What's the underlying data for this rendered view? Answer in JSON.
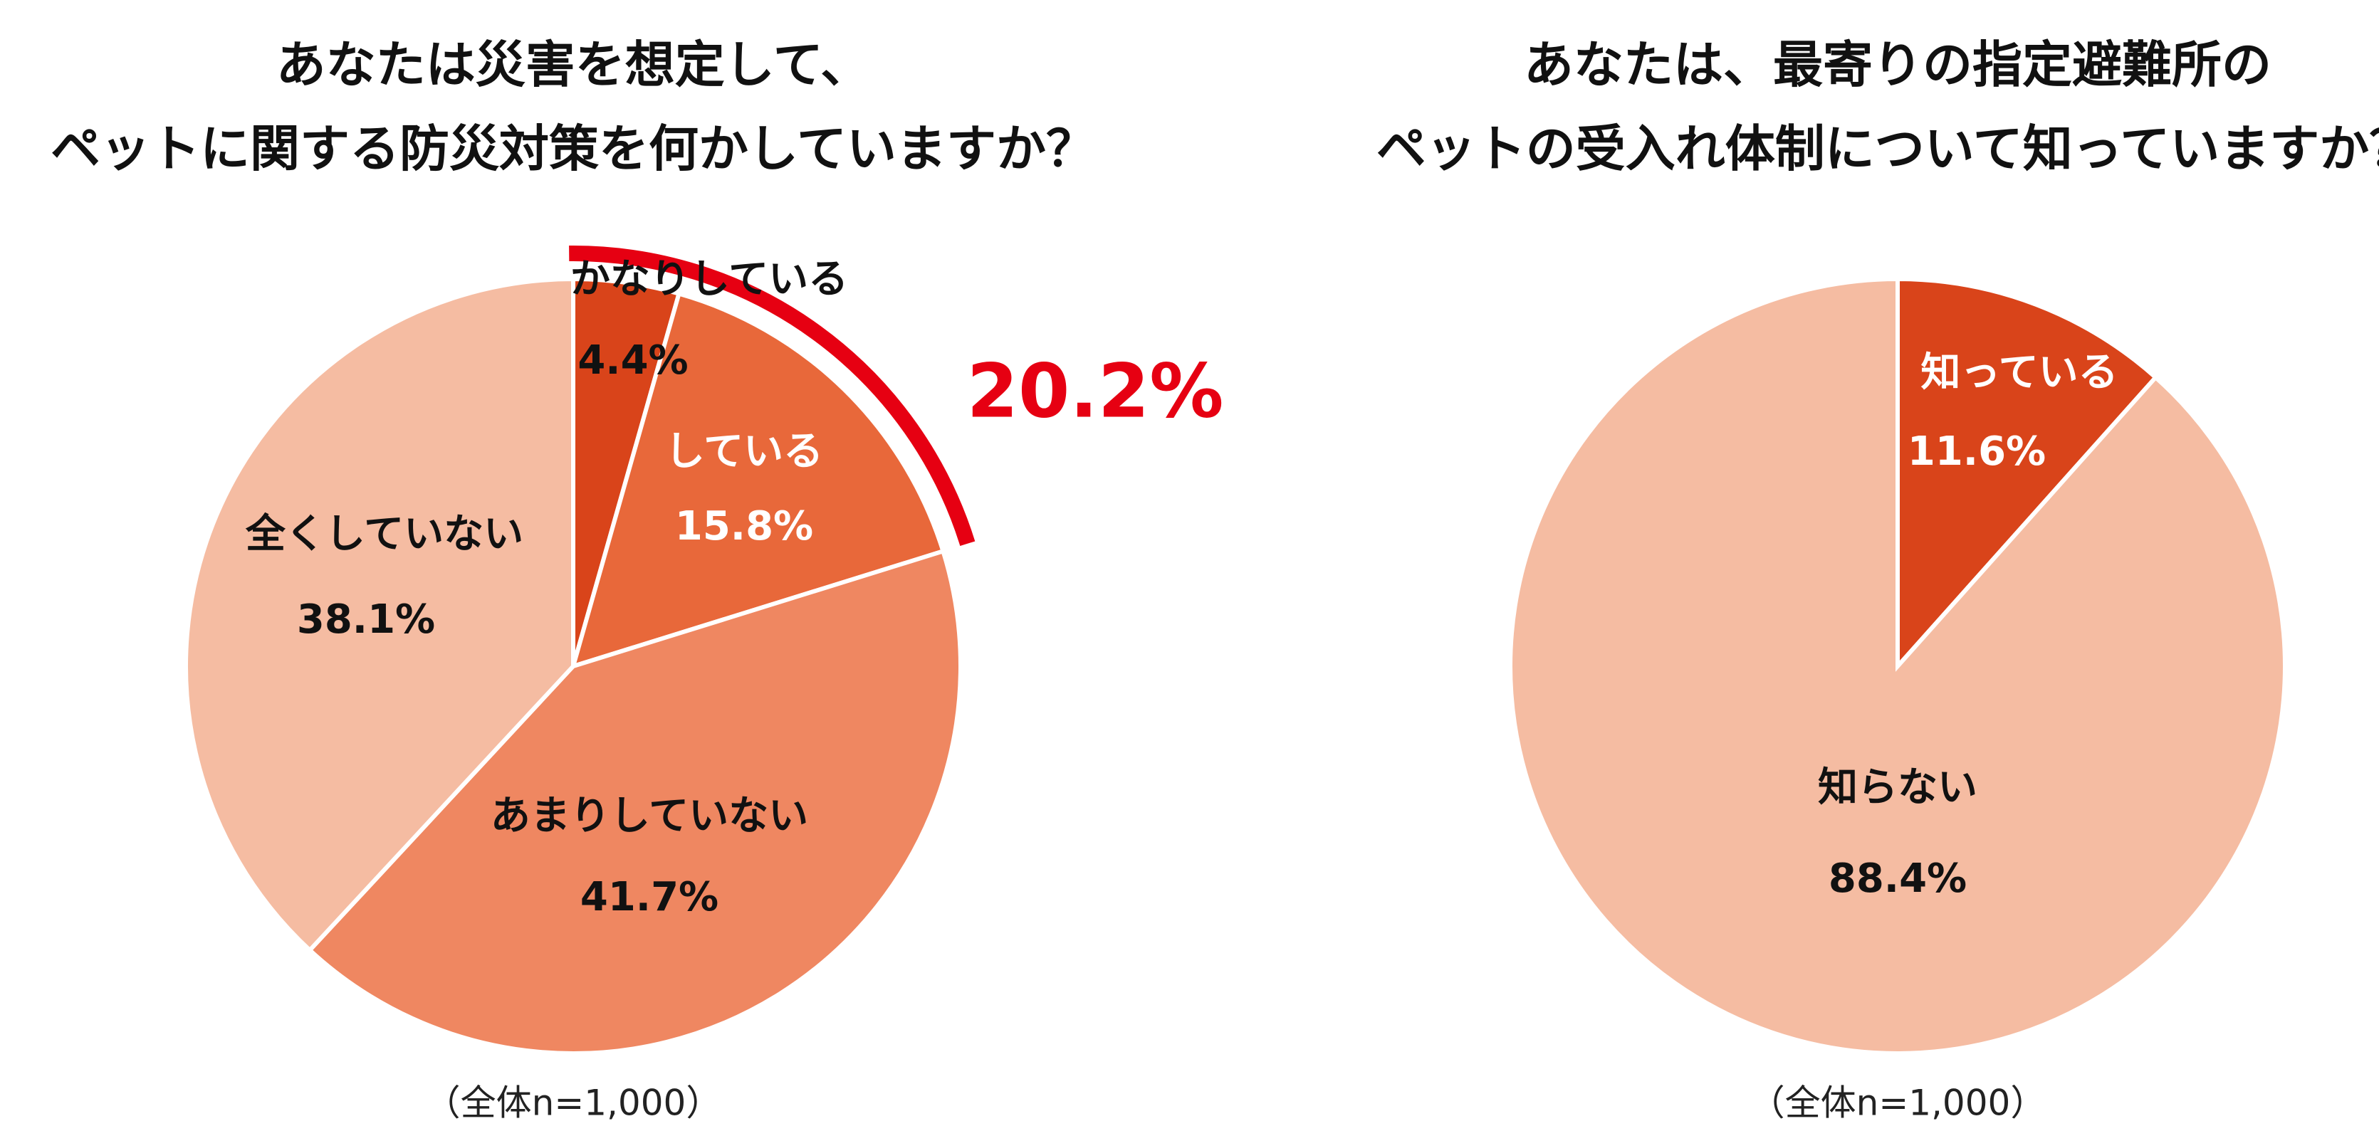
{
  "chart_data": [
    {
      "type": "pie",
      "title": [
        "あなたは災害を想定して、",
        "ペットに関する防災対策を何かしていますか？"
      ],
      "categories": [
        "かなりしている",
        "している",
        "あまりしていない",
        "全くしていない"
      ],
      "values": [
        4.4,
        15.8,
        41.7,
        38.1
      ],
      "value_labels": [
        "4.4%",
        "15.8%",
        "41.7%",
        "38.1%"
      ],
      "colors": [
        "#d9441a",
        "#e8683a",
        "#ef8761",
        "#f5bca2"
      ],
      "annotation": "20.2%",
      "note": "（全体n=1,000）"
    },
    {
      "type": "pie",
      "title": [
        "あなたは、最寄りの指定避難所の",
        "ペットの受入れ体制について知っていますか？"
      ],
      "categories": [
        "知っている",
        "知らない"
      ],
      "values": [
        11.6,
        88.4
      ],
      "value_labels": [
        "11.6%",
        "88.4%"
      ],
      "colors": [
        "#d9441a",
        "#f5bca2"
      ],
      "note": "（全体n=1,000）"
    }
  ]
}
